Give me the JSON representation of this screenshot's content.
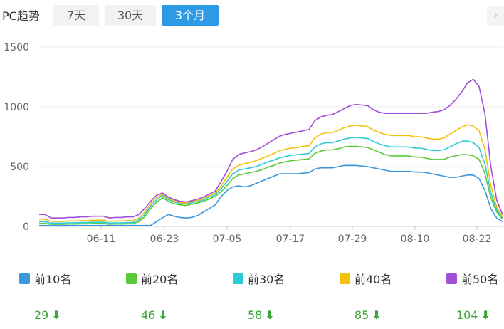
{
  "header": {
    "label": "PC趋势",
    "tabs": [
      {
        "label": "7天",
        "active": false
      },
      {
        "label": "30天",
        "active": false
      },
      {
        "label": "3个月",
        "active": true
      }
    ],
    "next_icon": "chevron-right-icon"
  },
  "chart_data": {
    "type": "line",
    "title": "",
    "xlabel": "",
    "ylabel": "",
    "ylim": [
      0,
      1500
    ],
    "yticks": [
      0,
      500,
      1000,
      1500
    ],
    "grid": true,
    "legend_position": "bottom",
    "x_tick_labels": [
      "06-11",
      "06-23",
      "07-05",
      "07-17",
      "07-29",
      "08-10",
      "08-22"
    ],
    "series": [
      {
        "name": "前10名",
        "color": "#3a98db",
        "values": [
          8,
          8,
          8,
          8,
          8,
          8,
          8,
          8,
          8,
          8,
          8,
          8,
          8,
          8,
          8,
          8,
          8,
          8,
          8,
          8,
          40,
          70,
          100,
          85,
          75,
          70,
          75,
          90,
          120,
          150,
          180,
          250,
          300,
          330,
          340,
          330,
          340,
          360,
          380,
          400,
          420,
          440,
          440,
          440,
          440,
          445,
          450,
          480,
          490,
          490,
          490,
          500,
          510,
          510,
          510,
          505,
          500,
          490,
          480,
          470,
          460,
          460,
          460,
          460,
          455,
          455,
          450,
          440,
          430,
          420,
          410,
          410,
          420,
          430,
          430,
          400,
          300,
          150,
          70,
          40
        ]
      },
      {
        "name": "前20名",
        "color": "#5cc93a",
        "values": [
          25,
          25,
          18,
          18,
          18,
          20,
          20,
          22,
          22,
          25,
          25,
          25,
          18,
          20,
          20,
          22,
          22,
          40,
          80,
          150,
          200,
          240,
          210,
          190,
          180,
          175,
          185,
          195,
          210,
          230,
          250,
          290,
          340,
          400,
          430,
          440,
          450,
          460,
          475,
          495,
          510,
          530,
          540,
          550,
          555,
          560,
          565,
          610,
          630,
          640,
          640,
          650,
          665,
          670,
          670,
          665,
          660,
          640,
          620,
          600,
          590,
          590,
          590,
          590,
          580,
          580,
          570,
          560,
          560,
          560,
          580,
          590,
          600,
          600,
          590,
          560,
          440,
          240,
          120,
          60
        ]
      },
      {
        "name": "前30名",
        "color": "#2acad6",
        "values": [
          40,
          40,
          28,
          28,
          28,
          30,
          30,
          32,
          32,
          35,
          35,
          35,
          28,
          30,
          30,
          32,
          32,
          55,
          100,
          170,
          220,
          260,
          225,
          205,
          192,
          188,
          198,
          208,
          222,
          245,
          265,
          315,
          375,
          440,
          470,
          480,
          490,
          500,
          520,
          540,
          555,
          575,
          585,
          595,
          600,
          605,
          610,
          665,
          690,
          700,
          700,
          715,
          730,
          740,
          745,
          740,
          735,
          710,
          690,
          675,
          665,
          665,
          665,
          665,
          655,
          655,
          645,
          635,
          635,
          640,
          665,
          690,
          710,
          715,
          700,
          660,
          520,
          280,
          140,
          70
        ]
      },
      {
        "name": "前40名",
        "color": "#f3c10a",
        "values": [
          60,
          60,
          42,
          42,
          42,
          45,
          45,
          48,
          48,
          52,
          52,
          52,
          42,
          45,
          45,
          48,
          48,
          70,
          120,
          190,
          240,
          270,
          235,
          215,
          200,
          196,
          206,
          218,
          232,
          258,
          280,
          340,
          410,
          480,
          510,
          525,
          535,
          550,
          570,
          590,
          610,
          635,
          645,
          655,
          660,
          670,
          675,
          740,
          770,
          785,
          785,
          805,
          825,
          840,
          845,
          840,
          835,
          805,
          785,
          770,
          760,
          760,
          760,
          760,
          750,
          750,
          740,
          730,
          730,
          740,
          770,
          800,
          830,
          850,
          840,
          800,
          640,
          340,
          160,
          80
        ]
      },
      {
        "name": "前50名",
        "color": "#a24fd8",
        "values": [
          100,
          100,
          70,
          70,
          70,
          75,
          75,
          80,
          80,
          85,
          85,
          85,
          70,
          75,
          75,
          80,
          80,
          100,
          150,
          210,
          260,
          280,
          245,
          225,
          210,
          205,
          215,
          228,
          245,
          270,
          295,
          375,
          460,
          560,
          600,
          615,
          625,
          640,
          665,
          695,
          725,
          755,
          770,
          780,
          790,
          800,
          810,
          885,
          915,
          930,
          935,
          960,
          985,
          1010,
          1020,
          1015,
          1010,
          975,
          955,
          945,
          945,
          945,
          945,
          945,
          945,
          945,
          945,
          955,
          960,
          975,
          1010,
          1060,
          1120,
          1200,
          1230,
          1170,
          940,
          500,
          220,
          100
        ]
      }
    ],
    "end_counts": [
      29,
      46,
      58,
      85,
      104
    ]
  },
  "legend": {
    "items": [
      {
        "label": "前10名",
        "count": "29"
      },
      {
        "label": "前20名",
        "count": "46"
      },
      {
        "label": "前30名",
        "count": "58"
      },
      {
        "label": "前40名",
        "count": "85"
      },
      {
        "label": "前50名",
        "count": "104"
      }
    ],
    "trend_icon": "arrow-down-icon"
  }
}
